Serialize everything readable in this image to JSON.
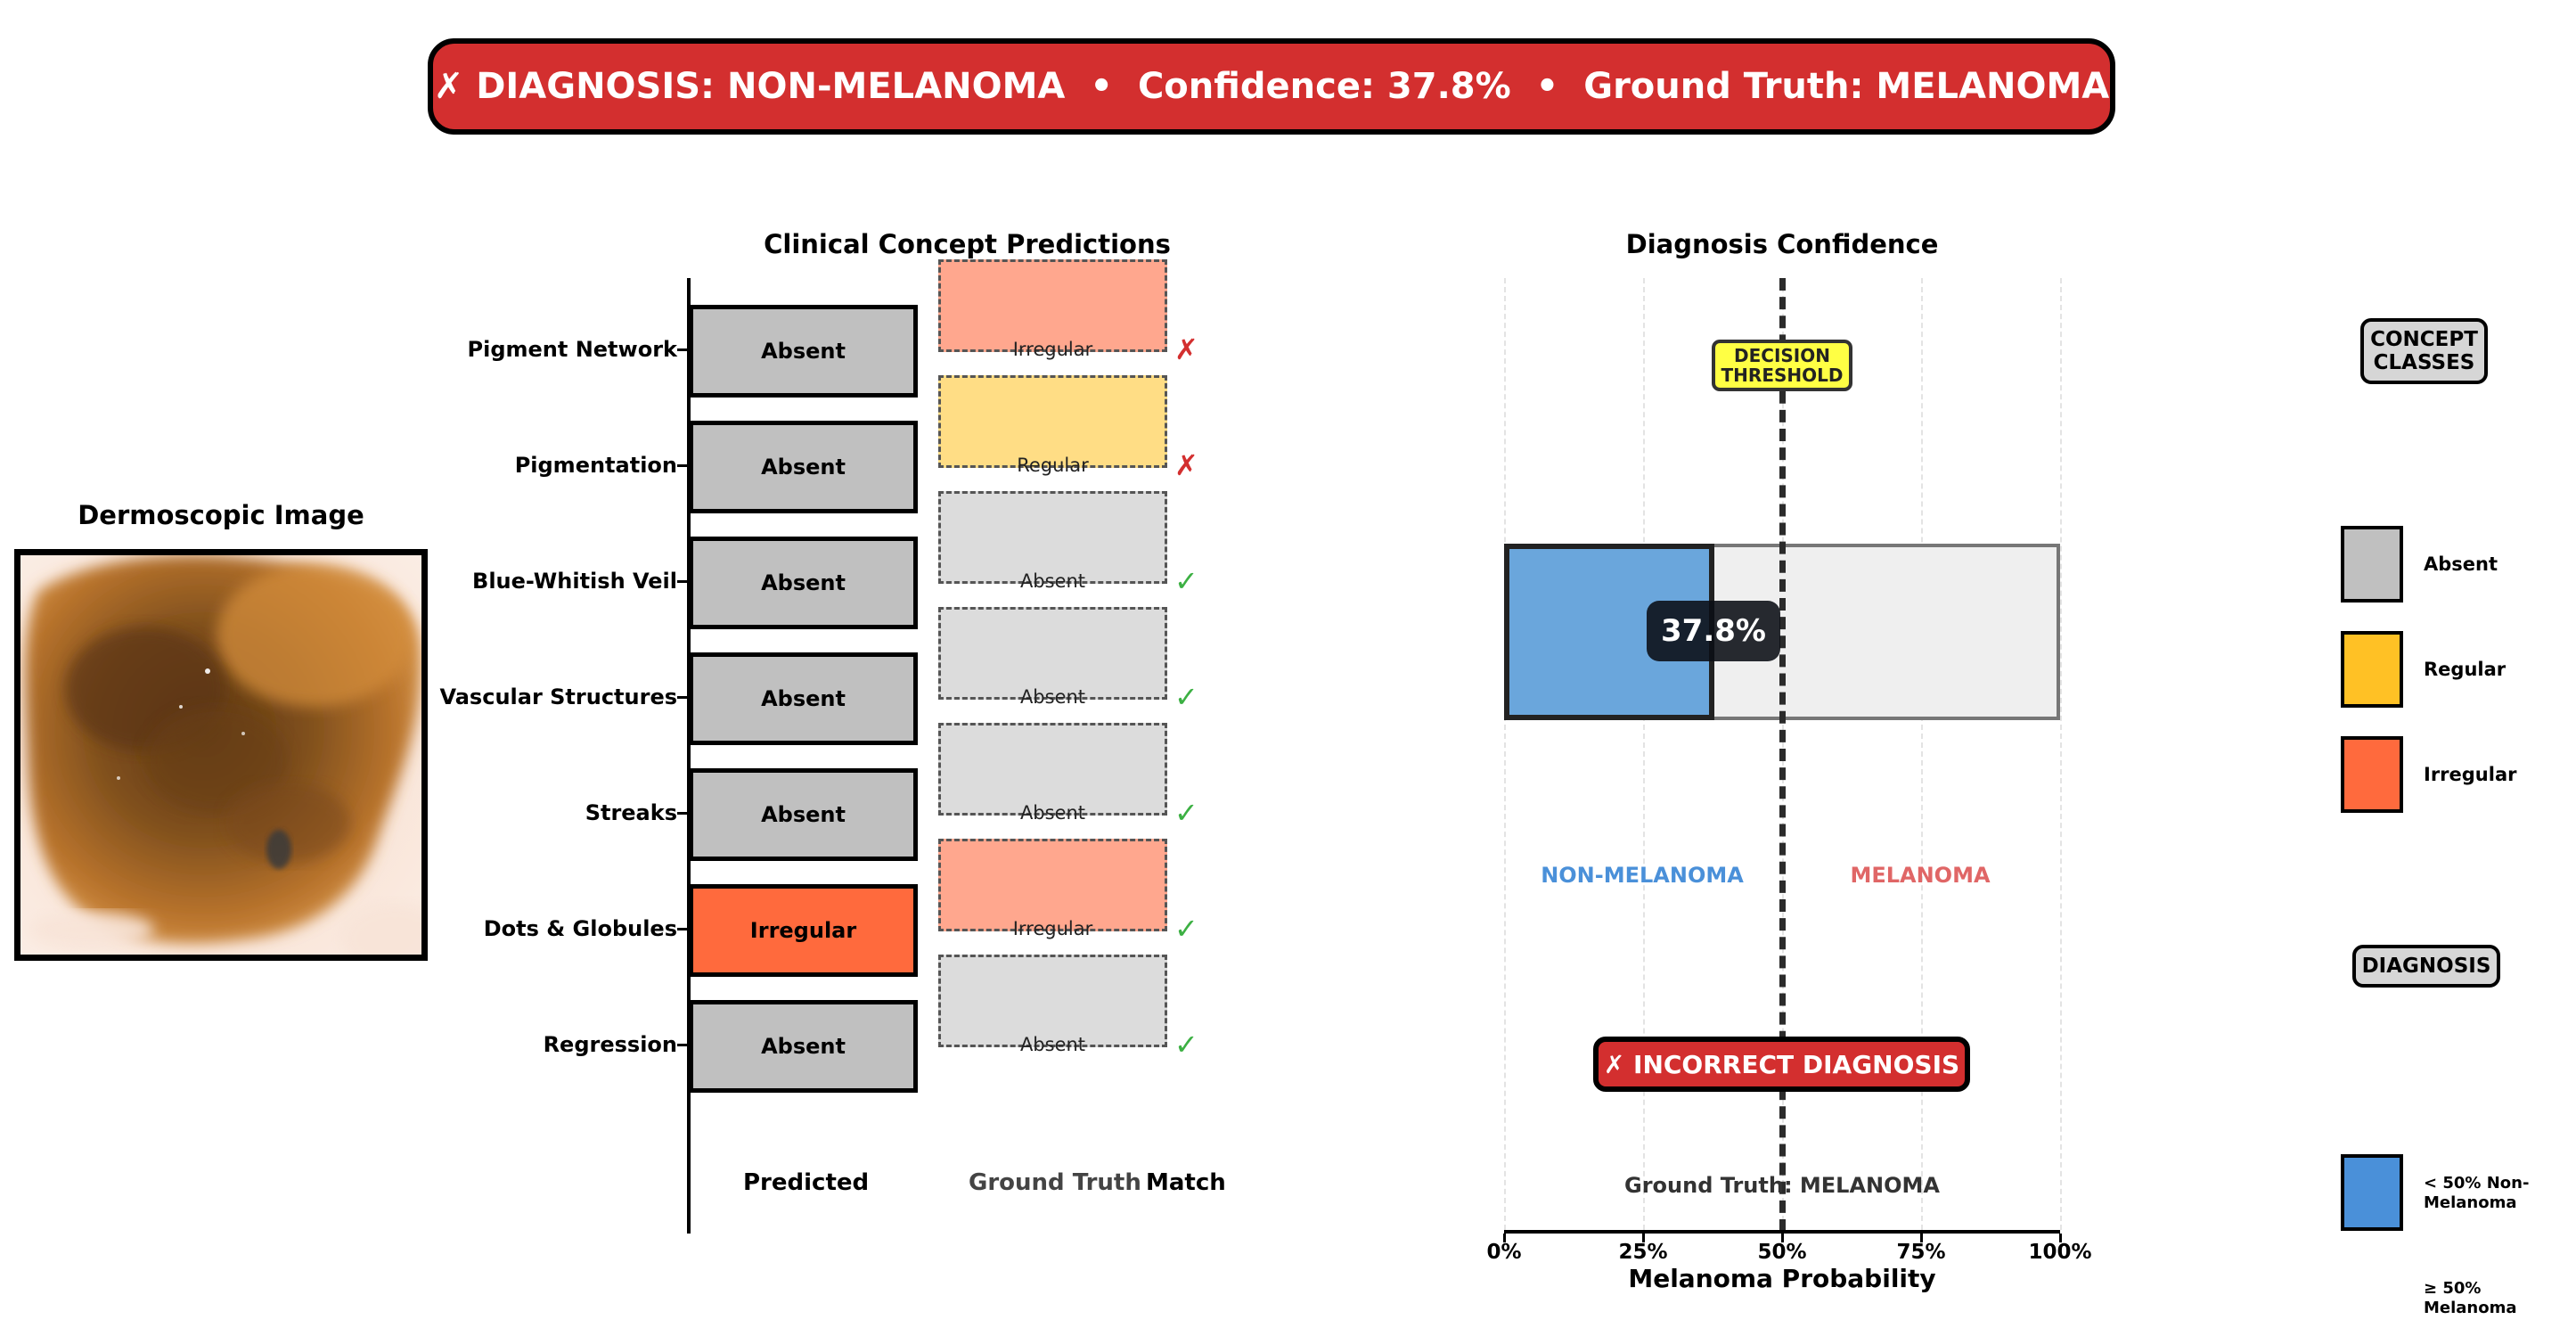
{
  "header": {
    "mark": "✗",
    "diagnosis": "DIAGNOSIS: NON-MELANOMA",
    "confidence": "Confidence: 37.8%",
    "ground_truth": "Ground Truth: MELANOMA",
    "separator": "•",
    "color": "#d32f2f"
  },
  "image_panel": {
    "title": "Dermoscopic Image"
  },
  "colors": {
    "Absent": "#c0c0c0",
    "Regular": "#ffc125",
    "Irregular": "#ff6a3d",
    "Absent_gt": "#dcdcdc",
    "Regular_gt": "#ffdd85",
    "Irregular_gt": "#ffa78e",
    "non_melanoma": "#4a90d9",
    "melanoma": "#e06666",
    "match_ok": "#3cb043",
    "match_bad": "#d32f2f"
  },
  "chart_data": [
    {
      "type": "table",
      "title": "Clinical Concept Predictions",
      "columns": [
        "Predicted",
        "Ground Truth",
        "Match"
      ],
      "rows": [
        {
          "concept": "Pigment Network",
          "predicted": "Absent",
          "ground_truth": "Irregular",
          "match": "✗"
        },
        {
          "concept": "Pigmentation",
          "predicted": "Absent",
          "ground_truth": "Regular",
          "match": "✗"
        },
        {
          "concept": "Blue-Whitish Veil",
          "predicted": "Absent",
          "ground_truth": "Absent",
          "match": "✓"
        },
        {
          "concept": "Vascular Structures",
          "predicted": "Absent",
          "ground_truth": "Absent",
          "match": "✓"
        },
        {
          "concept": "Streaks",
          "predicted": "Absent",
          "ground_truth": "Absent",
          "match": "✓"
        },
        {
          "concept": "Dots & Globules",
          "predicted": "Irregular",
          "ground_truth": "Irregular",
          "match": "✓"
        },
        {
          "concept": "Regression",
          "predicted": "Absent",
          "ground_truth": "Absent",
          "match": "✓"
        }
      ]
    },
    {
      "type": "bar",
      "title": "Diagnosis Confidence",
      "xlabel": "Melanoma Probability",
      "value": 37.8,
      "value_label": "37.8%",
      "threshold": 50,
      "threshold_label": "DECISION THRESHOLD",
      "xlim": [
        0,
        100
      ],
      "xticks": [
        "0%",
        "25%",
        "50%",
        "75%",
        "100%"
      ],
      "grid": true,
      "region_labels": {
        "left": "NON-MELANOMA",
        "right": "MELANOMA"
      },
      "result_badge": "✗ INCORRECT DIAGNOSIS",
      "ground_truth_note": "Ground Truth: MELANOMA"
    }
  ],
  "legend": {
    "concept_heading": "CONCEPT CLASSES",
    "concept_items": [
      "Absent",
      "Regular",
      "Irregular"
    ],
    "diagnosis_heading": "DIAGNOSIS",
    "diagnosis_items": [
      "< 50% Non-Melanoma",
      "≥ 50% Melanoma"
    ]
  }
}
